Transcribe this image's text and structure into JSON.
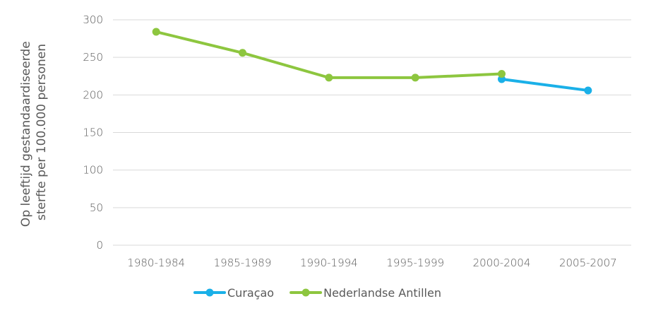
{
  "chart_data": {
    "type": "line",
    "categories": [
      "1980-1984",
      "1985-1989",
      "1990-1994",
      "1995-1999",
      "2000-2004",
      "2005-2007"
    ],
    "ylabel_line1": "Op leeftijd gestandaardiseerde",
    "ylabel_line2": "sterfte per 100.000 personen",
    "ylim": [
      0,
      300
    ],
    "yticks": [
      0,
      50,
      100,
      150,
      200,
      250,
      300
    ],
    "grid": true,
    "legend_position": "bottom",
    "series": [
      {
        "name": "Curaçao",
        "color": "#1ab0e8",
        "values": [
          null,
          null,
          null,
          null,
          221,
          206
        ]
      },
      {
        "name": "Nederlandse Antillen",
        "color": "#8dc63f",
        "values": [
          284,
          256,
          223,
          223,
          228,
          null
        ]
      }
    ]
  }
}
